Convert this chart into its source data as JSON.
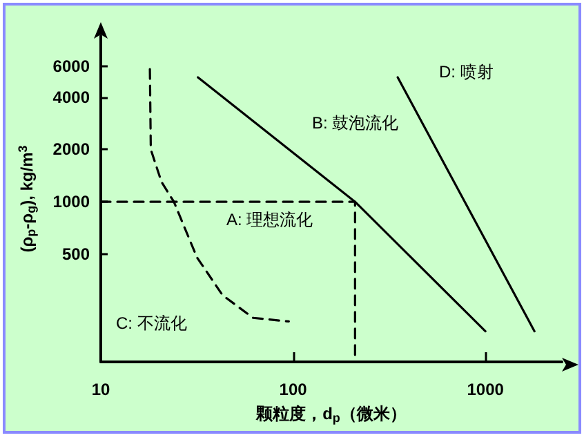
{
  "chart_data": {
    "type": "line",
    "xlabel": "颗粒度，d$_{p}$（微米）",
    "ylabel": "(ρ$_{p}$-ρ$_{g}$), kg/m$^{3}$",
    "log": "xy",
    "grid": false,
    "marker": "none",
    "xlim": [
      10,
      2500
    ],
    "xticks": [
      10,
      100,
      1000
    ],
    "ylim": [
      120,
      9000
    ],
    "yticks": [
      500,
      1000,
      2000,
      4000,
      6000
    ],
    "series": [
      {
        "color": "#000000",
        "line_style": "solid",
        "x": [
          32,
          210,
          1000
        ],
        "values": [
          5200,
          1000,
          180
        ]
      },
      {
        "color": "#000000",
        "line_style": "solid",
        "x": [
          350,
          1800
        ],
        "values": [
          5200,
          180
        ]
      },
      {
        "color": "#000000",
        "line_style": "dashed",
        "x": [
          18,
          18.2,
          20.7,
          24,
          31.6,
          43,
          62,
          95
        ],
        "values": [
          5800,
          2000,
          1300,
          1000,
          480,
          290,
          215,
          205
        ]
      },
      {
        "color": "#000000",
        "line_style": "dashed",
        "x": [
          10,
          210,
          210
        ],
        "values": [
          1000,
          1000,
          120
        ]
      }
    ],
    "annotations": [
      "D: 喷射",
      "B: 鼓泡流化",
      "A: 理想流化",
      "C: 不流化"
    ]
  }
}
